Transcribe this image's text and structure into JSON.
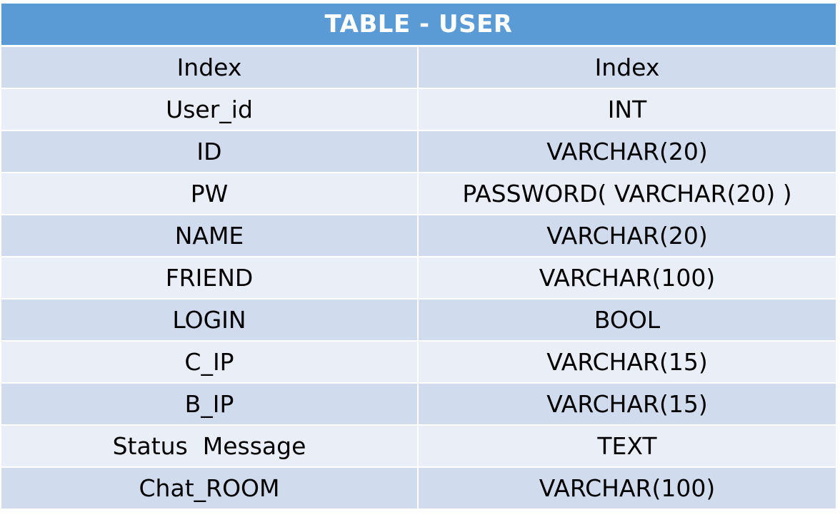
{
  "table": {
    "title": "TABLE - USER",
    "rows": [
      {
        "name": "Index",
        "type": "Index"
      },
      {
        "name": "User_id",
        "type": "INT"
      },
      {
        "name": "ID",
        "type": "VARCHAR(20)"
      },
      {
        "name": "PW",
        "type": "PASSWORD( VARCHAR(20) )"
      },
      {
        "name": "NAME",
        "type": "VARCHAR(20)"
      },
      {
        "name": "FRIEND",
        "type": "VARCHAR(100)"
      },
      {
        "name": "LOGIN",
        "type": "BOOL"
      },
      {
        "name": "C_IP",
        "type": "VARCHAR(15)"
      },
      {
        "name": "B_IP",
        "type": "VARCHAR(15)"
      },
      {
        "name": "Status  Message",
        "type": "TEXT"
      },
      {
        "name": "Chat_ROOM",
        "type": "VARCHAR(100)"
      }
    ]
  },
  "colors": {
    "header_bg": "#5b9bd5",
    "row_odd_bg": "#d0dcee",
    "row_even_bg": "#e9eef7",
    "header_text": "#ffffff",
    "cell_text": "#000000"
  }
}
